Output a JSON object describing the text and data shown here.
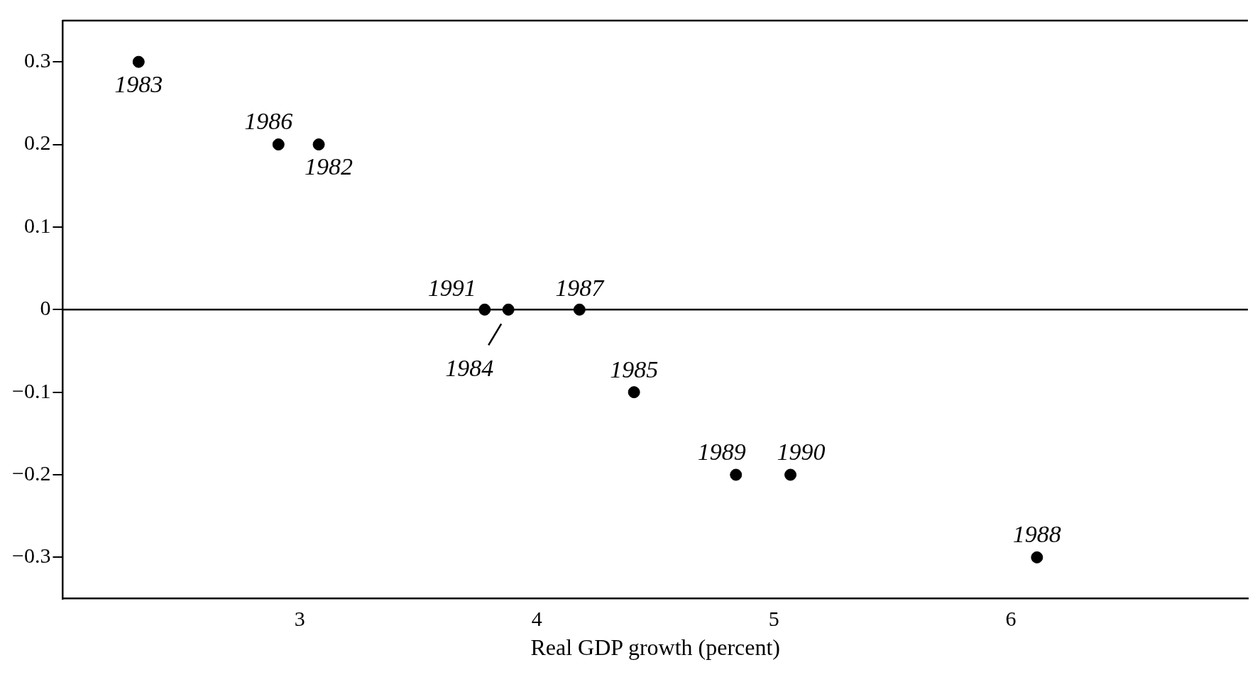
{
  "chart_data": {
    "type": "scatter",
    "xlabel": "Real GDP growth (percent)",
    "x": [
      2.32,
      2.91,
      3.08,
      3.78,
      3.88,
      4.18,
      4.41,
      4.84,
      5.07,
      6.11
    ],
    "values": [
      0.3,
      0.2,
      0.2,
      0,
      0,
      0,
      -0.1,
      -0.2,
      -0.2,
      -0.3
    ],
    "color": "#000000",
    "marker": "circle",
    "xlim": [
      2,
      7
    ],
    "xticks": [
      3,
      4,
      5,
      6
    ],
    "ylim": [
      -0.35,
      0.35
    ],
    "yticks": [
      {
        "value": 0.3,
        "label": "0.3"
      },
      {
        "value": 0.2,
        "label": "0.2"
      },
      {
        "value": 0.1,
        "label": "0.1"
      },
      {
        "value": 0,
        "label": "0"
      },
      {
        "value": -0.1,
        "label": "−0.1"
      },
      {
        "value": -0.2,
        "label": "−0.2"
      },
      {
        "value": -0.3,
        "label": "−0.3"
      }
    ],
    "ref_lines": [
      {
        "axis": "y",
        "value": 0,
        "color": "#000000"
      }
    ],
    "grid": false,
    "legend": false,
    "annotations": [
      {
        "text": "1983",
        "x": 2.32,
        "y": 0.3
      },
      {
        "text": "1986",
        "x": 2.91,
        "y": 0.2
      },
      {
        "text": "1982",
        "x": 3.08,
        "y": 0.2
      },
      {
        "text": "1991",
        "x": 3.78,
        "y": 0
      },
      {
        "text": "1984",
        "x": 3.88,
        "y": 0
      },
      {
        "text": "1987",
        "x": 4.18,
        "y": 0
      },
      {
        "text": "1985",
        "x": 4.41,
        "y": -0.1
      },
      {
        "text": "1989",
        "x": 4.84,
        "y": -0.2
      },
      {
        "text": "1990",
        "x": 5.07,
        "y": -0.2
      },
      {
        "text": "1988",
        "x": 6.11,
        "y": -0.3
      }
    ]
  }
}
